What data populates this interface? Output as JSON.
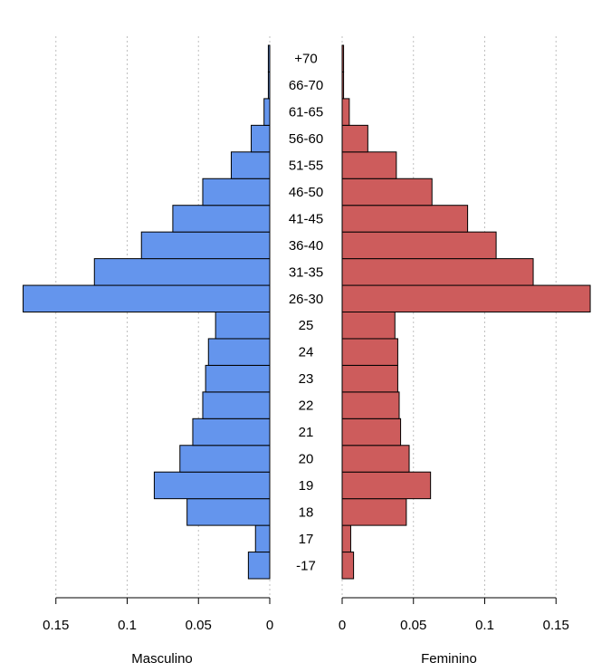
{
  "chart_data": {
    "type": "bar",
    "subtype": "population-pyramid",
    "categories": [
      "-17",
      "17",
      "18",
      "19",
      "20",
      "21",
      "22",
      "23",
      "24",
      "25",
      "26-30",
      "31-35",
      "36-40",
      "41-45",
      "46-50",
      "51-55",
      "56-60",
      "61-65",
      "66-70",
      "+70"
    ],
    "series": [
      {
        "name": "Masculino",
        "side": "left",
        "color": "#6495ED",
        "values": [
          0.015,
          0.01,
          0.058,
          0.081,
          0.063,
          0.054,
          0.047,
          0.045,
          0.043,
          0.038,
          0.173,
          0.123,
          0.09,
          0.068,
          0.047,
          0.027,
          0.013,
          0.004,
          0.001,
          0.001
        ]
      },
      {
        "name": "Feminino",
        "side": "right",
        "color": "#CD5C5C",
        "values": [
          0.008,
          0.006,
          0.045,
          0.062,
          0.047,
          0.041,
          0.04,
          0.039,
          0.039,
          0.037,
          0.174,
          0.134,
          0.108,
          0.088,
          0.063,
          0.038,
          0.018,
          0.005,
          0.001,
          0.001
        ]
      }
    ],
    "left_xlabel": "Masculino",
    "right_xlabel": "Feminino",
    "xticks": [
      0,
      0.05,
      0.1,
      0.15
    ],
    "xtick_labels": [
      "0",
      "0.05",
      "0.1",
      "0.15"
    ],
    "xlim": [
      0,
      0.175
    ],
    "grid": "vertical-dotted"
  }
}
